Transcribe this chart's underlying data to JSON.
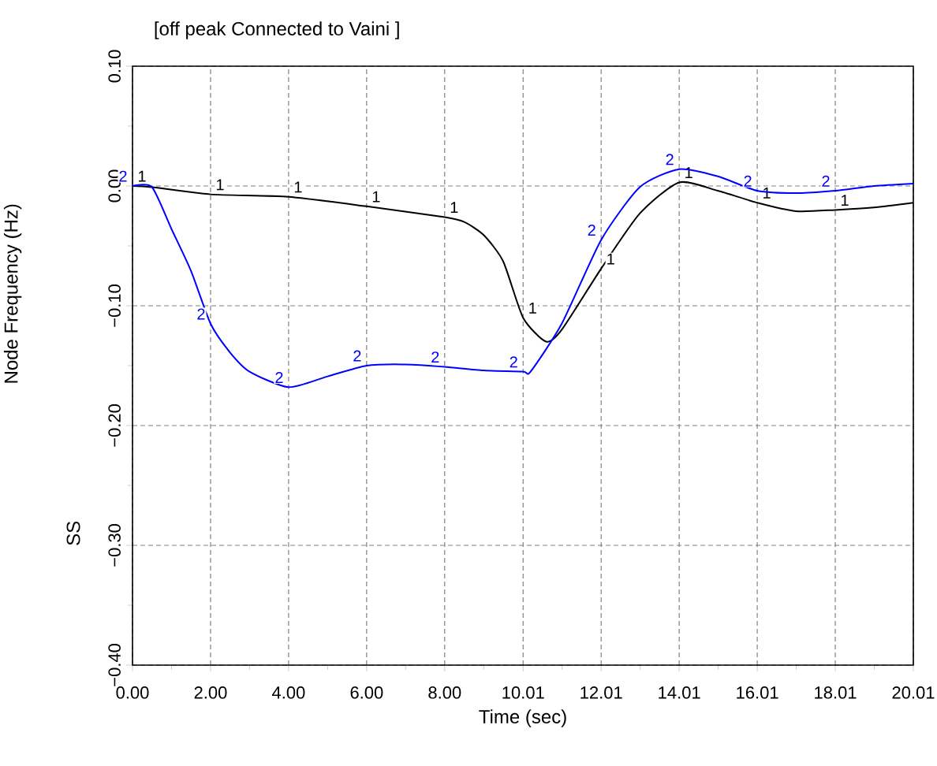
{
  "chart_data": {
    "type": "line",
    "title": "[off peak Connected to Vaini ]",
    "xlabel": "Time (sec)",
    "ylabel": "Node Frequency (Hz)",
    "annotations": [
      "SS"
    ],
    "xlim": [
      0,
      20.01
    ],
    "ylim": [
      -0.4,
      0.1
    ],
    "xticks": [
      {
        "value": 0,
        "label": "0.00"
      },
      {
        "value": 2,
        "label": "2.00"
      },
      {
        "value": 4,
        "label": "4.00"
      },
      {
        "value": 6,
        "label": "6.00"
      },
      {
        "value": 8,
        "label": "8.00"
      },
      {
        "value": 10.01,
        "label": "10.01"
      },
      {
        "value": 12.01,
        "label": "12.01"
      },
      {
        "value": 14.01,
        "label": "14.01"
      },
      {
        "value": 16.01,
        "label": "16.01"
      },
      {
        "value": 18.01,
        "label": "18.01"
      },
      {
        "value": 20.01,
        "label": "20.01"
      },
      {
        "value": 1,
        "label": null
      },
      {
        "value": 3,
        "label": null
      },
      {
        "value": 5,
        "label": null
      },
      {
        "value": 7,
        "label": null
      },
      {
        "value": 9,
        "label": null
      },
      {
        "value": 11.01,
        "label": null
      },
      {
        "value": 13.01,
        "label": null
      },
      {
        "value": 15.01,
        "label": null
      },
      {
        "value": 17.01,
        "label": null
      },
      {
        "value": 19.01,
        "label": null
      }
    ],
    "yticks": [
      {
        "value": 0.1,
        "label": "0.10"
      },
      {
        "value": 0,
        "label": "0.00"
      },
      {
        "value": -0.1,
        "label": "−0.10"
      },
      {
        "value": -0.2,
        "label": "−0.20"
      },
      {
        "value": -0.3,
        "label": "−0.30"
      },
      {
        "value": -0.4,
        "label": "−0.40"
      },
      {
        "value": 0.05,
        "label": null
      },
      {
        "value": -0.05,
        "label": null
      },
      {
        "value": -0.15,
        "label": null
      },
      {
        "value": -0.25,
        "label": null
      },
      {
        "value": -0.35,
        "label": null
      }
    ],
    "grid": true,
    "line_style": "solid",
    "series": [
      {
        "name": "1",
        "color": "#000000",
        "x": [
          0,
          0.5,
          2,
          4,
          6,
          8,
          8.5,
          9,
          9.5,
          10.01,
          10.6,
          11,
          12.01,
          13,
          14.01,
          15,
          16.01,
          17,
          18.01,
          19,
          20.01
        ],
        "values": [
          0.0,
          -0.001,
          -0.007,
          -0.009,
          -0.017,
          -0.026,
          -0.03,
          -0.041,
          -0.063,
          -0.11,
          -0.13,
          -0.12,
          -0.069,
          -0.023,
          0.003,
          -0.004,
          -0.014,
          -0.021,
          -0.02,
          -0.018,
          -0.014
        ]
      },
      {
        "name": "2",
        "color": "#0000ff",
        "x": [
          0,
          0.5,
          1,
          1.5,
          2,
          2.5,
          3,
          4,
          5,
          6,
          7,
          8,
          9,
          10.01,
          10.2,
          11,
          12.01,
          13,
          14.01,
          15,
          16.01,
          17,
          18.01,
          19,
          20.01
        ],
        "values": [
          0.0,
          -0.001,
          -0.036,
          -0.071,
          -0.115,
          -0.139,
          -0.155,
          -0.168,
          -0.159,
          -0.15,
          -0.149,
          -0.151,
          -0.154,
          -0.155,
          -0.155,
          -0.115,
          -0.045,
          -0.001,
          0.014,
          0.008,
          -0.004,
          -0.006,
          -0.004,
          0.0,
          0.002
        ]
      }
    ]
  }
}
